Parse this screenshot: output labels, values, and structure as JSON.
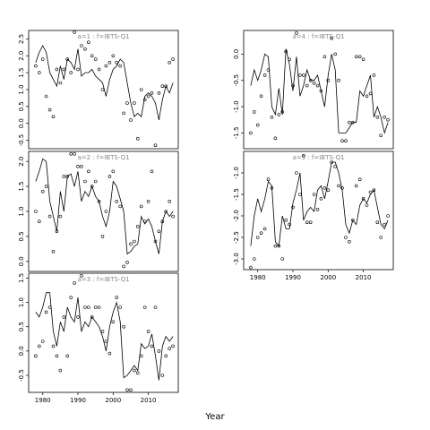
{
  "chart_data": {
    "type": "line",
    "xlabel": "Year",
    "panels": [
      {
        "id": "a1",
        "title": "a=1 : f=IBTS-Q1",
        "ylim": [
          -0.75,
          2.75
        ],
        "yticks": [
          "-0.5",
          "0.0",
          "0.5",
          "1.0",
          "1.5",
          "2.0",
          "2.5"
        ],
        "xticks": [],
        "x": [
          1978,
          1979,
          1980,
          1981,
          1982,
          1983,
          1984,
          1985,
          1986,
          1987,
          1988,
          1989,
          1990,
          1991,
          1992,
          1993,
          1994,
          1995,
          1996,
          1997,
          1998,
          1999,
          2000,
          2001,
          2002,
          2003,
          2004,
          2005,
          2006,
          2007,
          2008,
          2009,
          2010,
          2011,
          2012,
          2013,
          2014,
          2015,
          2016,
          2017
        ],
        "line": [
          1.8,
          2.1,
          2.3,
          2.1,
          1.5,
          1.3,
          1.1,
          1.7,
          1.3,
          1.9,
          1.8,
          1.6,
          2.2,
          1.4,
          1.5,
          1.5,
          1.6,
          1.4,
          1.3,
          1.2,
          0.8,
          1.3,
          1.6,
          1.7,
          1.9,
          1.8,
          1.2,
          0.6,
          0.2,
          0.3,
          0.2,
          0.8,
          0.9,
          0.8,
          0.6,
          0.1,
          0.7,
          1.1,
          0.9,
          1.2
        ],
        "points": [
          1.7,
          1.5,
          1.9,
          0.8,
          0.4,
          0.2,
          1.6,
          1.2,
          1.6,
          1.9,
          1.5,
          2.7,
          1.6,
          2.3,
          2.2,
          2.4,
          2.0,
          1.9,
          1.6,
          1.0,
          1.7,
          1.8,
          2.0,
          1.8,
          1.7,
          0.3,
          0.6,
          0.1,
          0.6,
          -0.45,
          1.0,
          0.7,
          0.8,
          0.9,
          -0.65,
          0.9,
          1.1,
          1.1,
          1.8,
          1.9
        ]
      },
      {
        "id": "a2",
        "title": "a=2 : f=IBTS-Q1",
        "ylim": [
          -0.2,
          2.2
        ],
        "yticks": [
          "0.0",
          "0.5",
          "1.0",
          "1.5",
          "2.0"
        ],
        "xticks": [],
        "x": [
          1978,
          1979,
          1980,
          1981,
          1982,
          1983,
          1984,
          1985,
          1986,
          1987,
          1988,
          1989,
          1990,
          1991,
          1992,
          1993,
          1994,
          1995,
          1996,
          1997,
          1998,
          1999,
          2000,
          2001,
          2002,
          2003,
          2004,
          2005,
          2006,
          2007,
          2008,
          2009,
          2010,
          2011,
          2012,
          2013,
          2014,
          2015,
          2016,
          2017
        ],
        "line": [
          1.6,
          1.8,
          2.05,
          2.0,
          1.2,
          0.9,
          0.6,
          1.4,
          1.0,
          1.7,
          1.75,
          1.5,
          1.8,
          1.2,
          1.4,
          1.3,
          1.5,
          1.3,
          1.2,
          0.9,
          0.7,
          1.0,
          1.6,
          1.5,
          1.25,
          1.0,
          0.15,
          0.2,
          0.3,
          0.35,
          0.9,
          0.75,
          0.85,
          0.7,
          0.4,
          0.15,
          0.8,
          1.0,
          0.9,
          1.0
        ],
        "points": [
          1.0,
          0.8,
          1.4,
          1.5,
          0.9,
          0.2,
          0.6,
          0.9,
          1.7,
          1.7,
          2.15,
          2.15,
          1.9,
          1.9,
          1.6,
          1.8,
          1.5,
          1.6,
          1.2,
          0.5,
          1.0,
          1.7,
          1.8,
          1.2,
          1.1,
          -0.1,
          -0.02,
          0.35,
          0.4,
          0.7,
          1.1,
          0.8,
          1.2,
          1.8,
          0.4,
          0.6,
          0.8,
          1.0,
          1.2,
          0.9
        ]
      },
      {
        "id": "a3",
        "title": "a=3 : f=IBTS-Q1",
        "ylim": [
          -0.85,
          1.6
        ],
        "yticks": [
          "-0.5",
          "0.0",
          "0.5",
          "1.0",
          "1.5"
        ],
        "xticks": [
          "1980",
          "1990",
          "2000",
          "2010"
        ],
        "x": [
          1978,
          1979,
          1980,
          1981,
          1982,
          1983,
          1984,
          1985,
          1986,
          1987,
          1988,
          1989,
          1990,
          1991,
          1992,
          1993,
          1994,
          1995,
          1996,
          1997,
          1998,
          1999,
          2000,
          2001,
          2002,
          2003,
          2004,
          2005,
          2006,
          2007,
          2008,
          2009,
          2010,
          2011,
          2012,
          2013,
          2014,
          2015,
          2016,
          2017
        ],
        "line": [
          0.8,
          0.7,
          0.9,
          1.2,
          1.2,
          0.4,
          0.1,
          0.6,
          0.4,
          0.9,
          0.7,
          0.6,
          1.1,
          0.4,
          0.6,
          0.5,
          0.7,
          0.6,
          0.5,
          0.3,
          0.0,
          0.5,
          0.8,
          1.0,
          0.6,
          -0.55,
          -0.5,
          -0.4,
          -0.3,
          -0.4,
          0.15,
          0.05,
          0.1,
          0.35,
          -0.1,
          -0.6,
          0.1,
          0.3,
          0.2,
          0.3
        ],
        "points": [
          -0.1,
          0.1,
          0.2,
          0.8,
          0.9,
          0.1,
          -0.1,
          -0.4,
          0.7,
          -0.1,
          1.1,
          1.4,
          0.7,
          1.55,
          0.9,
          0.9,
          0.7,
          0.9,
          0.9,
          0.4,
          0.2,
          -0.05,
          0.6,
          1.1,
          0.9,
          0.5,
          -0.8,
          -0.8,
          -0.4,
          -0.45,
          -0.1,
          0.9,
          0.4,
          0.1,
          0.9,
          0.0,
          -0.5,
          -0.1,
          0.05,
          0.1
        ]
      },
      {
        "id": "a4",
        "title": "a=4 : f=IBTS-Q1",
        "ylim": [
          -1.8,
          0.45
        ],
        "yticks": [
          "-1.5",
          "-1.0",
          "-0.5",
          "0.0"
        ],
        "xticks": [],
        "x": [
          1978,
          1979,
          1980,
          1981,
          1982,
          1983,
          1984,
          1985,
          1986,
          1987,
          1988,
          1989,
          1990,
          1991,
          1992,
          1993,
          1994,
          1995,
          1996,
          1997,
          1998,
          1999,
          2000,
          2001,
          2002,
          2003,
          2004,
          2005,
          2006,
          2007,
          2008,
          2009,
          2010,
          2011,
          2012,
          2013,
          2014,
          2015,
          2016,
          2017
        ],
        "line": [
          -0.6,
          -0.3,
          -0.5,
          -0.3,
          0.0,
          -0.05,
          -1.0,
          -1.15,
          -0.65,
          -1.15,
          0.1,
          -0.2,
          -0.7,
          -0.05,
          -0.8,
          -0.6,
          -0.3,
          -0.5,
          -0.5,
          -0.4,
          -0.7,
          -1.0,
          -0.4,
          0.0,
          -0.3,
          -1.5,
          -1.5,
          -1.5,
          -1.4,
          -1.3,
          -1.3,
          -0.7,
          -0.8,
          -0.6,
          -0.4,
          -1.2,
          -1.0,
          -1.2,
          -1.5,
          -1.3
        ],
        "points": [
          -1.5,
          -1.1,
          -1.35,
          -0.8,
          -0.4,
          -0.3,
          -1.2,
          -1.6,
          -1.15,
          -1.1,
          0.05,
          -0.1,
          -0.6,
          0.4,
          -0.4,
          -0.4,
          -0.6,
          -0.5,
          -0.55,
          -0.6,
          -0.7,
          -0.05,
          -0.5,
          0.3,
          0.0,
          -0.5,
          -1.65,
          -1.65,
          -1.3,
          -1.3,
          -0.05,
          -0.05,
          -0.1,
          -0.8,
          -0.75,
          -0.4,
          -1.2,
          -1.55,
          -1.2,
          -1.25
        ]
      },
      {
        "id": "a5",
        "title": "a=5 : f=IBTS-Q1",
        "ylim": [
          -3.25,
          -0.5
        ],
        "yticks": [
          "-3.0",
          "-2.5",
          "-2.0",
          "-1.5",
          "-1.0"
        ],
        "xticks": [
          "1980",
          "1990",
          "2000",
          "2010"
        ],
        "x": [
          1978,
          1979,
          1980,
          1981,
          1982,
          1983,
          1984,
          1985,
          1986,
          1987,
          1988,
          1989,
          1990,
          1991,
          1992,
          1993,
          1994,
          1995,
          1996,
          1997,
          1998,
          1999,
          2000,
          2001,
          2002,
          2003,
          2004,
          2005,
          2006,
          2007,
          2008,
          2009,
          2010,
          2011,
          2012,
          2013,
          2014,
          2015,
          2016,
          2017
        ],
        "line": [
          -2.7,
          -2.0,
          -1.6,
          -1.9,
          -1.6,
          -1.2,
          -1.3,
          -2.6,
          -2.7,
          -2.0,
          -2.3,
          -2.3,
          -1.7,
          -1.4,
          -1.0,
          -2.1,
          -1.9,
          -1.8,
          -1.9,
          -1.4,
          -1.3,
          -1.6,
          -1.2,
          -0.75,
          -0.75,
          -1.0,
          -1.4,
          -2.2,
          -2.4,
          -2.1,
          -2.2,
          -1.75,
          -1.6,
          -1.7,
          -1.5,
          -1.4,
          -1.8,
          -2.2,
          -2.3,
          -2.1
        ],
        "points": [
          -3.2,
          -3.0,
          -2.5,
          -2.4,
          -2.3,
          -1.15,
          -1.35,
          -2.7,
          -2.7,
          -3.0,
          -2.1,
          -2.2,
          -1.8,
          -1.0,
          -1.5,
          -0.6,
          -2.15,
          -2.15,
          -1.5,
          -1.85,
          -1.6,
          -1.35,
          -1.4,
          -0.75,
          -0.85,
          -1.3,
          -1.35,
          -2.5,
          -2.6,
          -2.1,
          -1.3,
          -1.15,
          -1.6,
          -1.75,
          -1.45,
          -1.4,
          -2.15,
          -2.5,
          -2.2,
          -2.0
        ]
      }
    ]
  }
}
